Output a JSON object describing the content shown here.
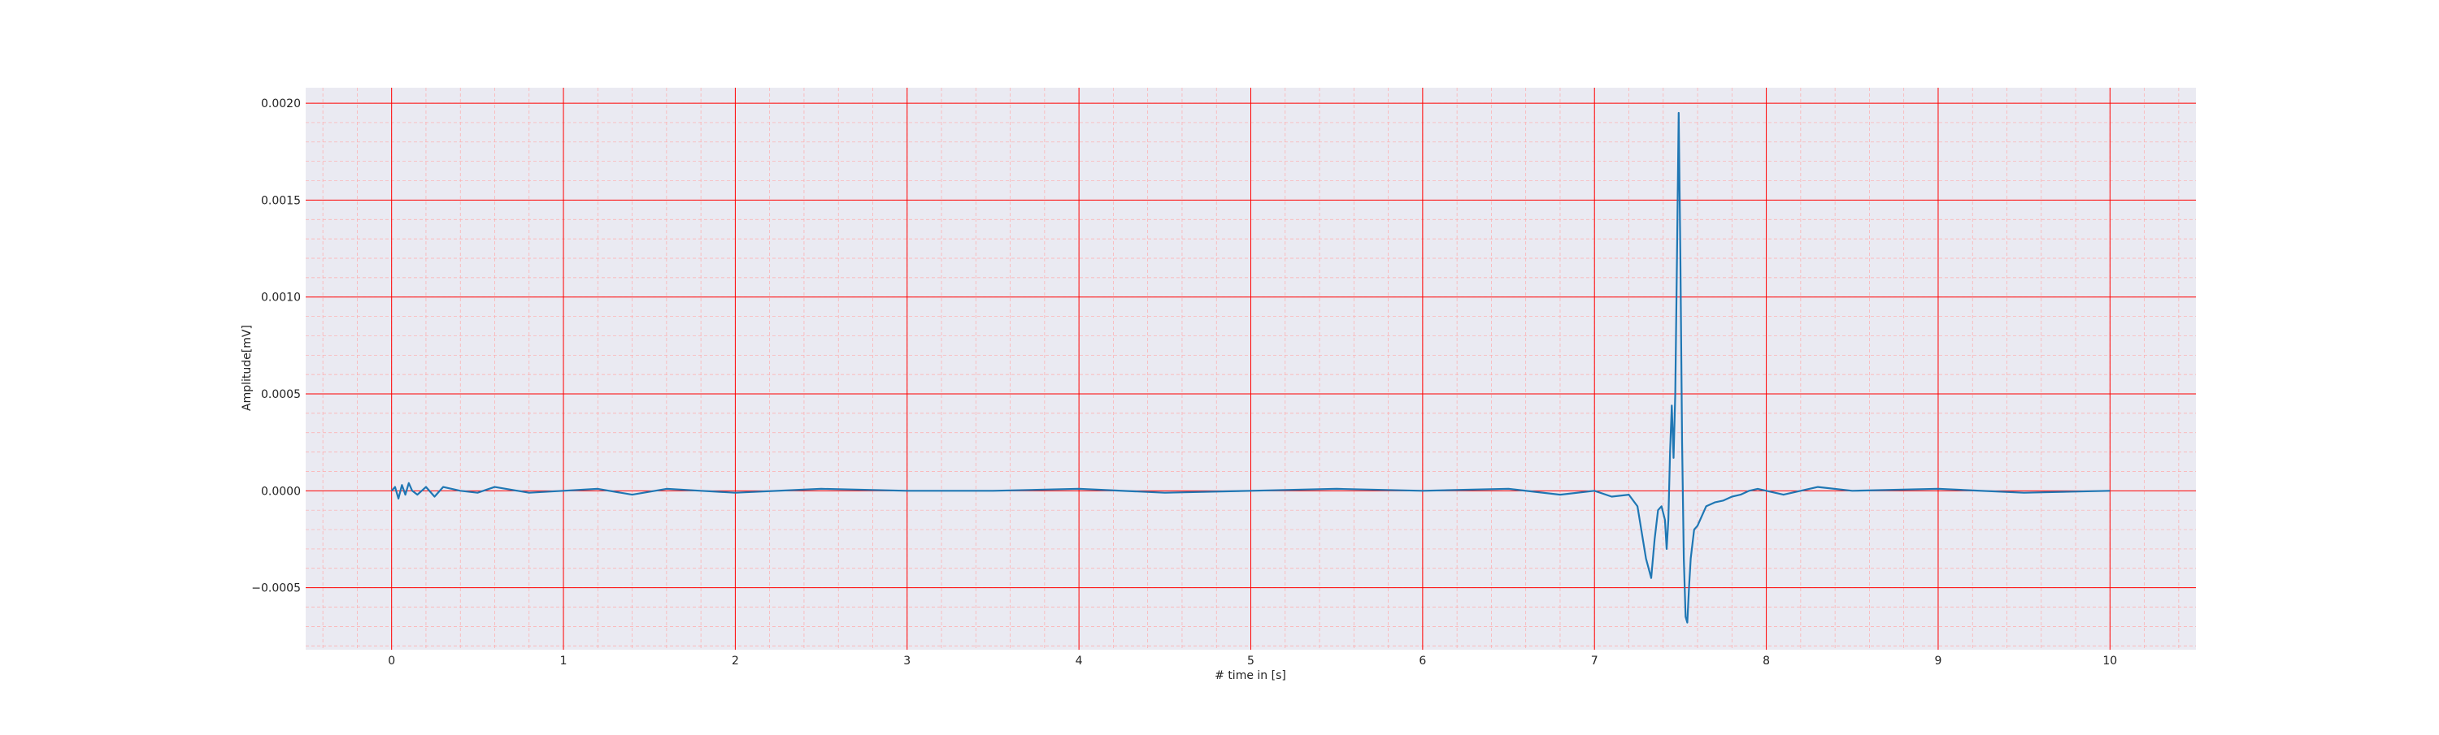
{
  "chart_data": {
    "type": "line",
    "title": "",
    "xlabel": "# time in [s]",
    "ylabel": "Amplitude[mV]",
    "xlim": [
      -0.5,
      10.5
    ],
    "ylim": [
      -0.00082,
      0.00208
    ],
    "x_ticks": [
      0,
      1,
      2,
      3,
      4,
      5,
      6,
      7,
      8,
      9,
      10
    ],
    "x_tick_labels": [
      "0",
      "1",
      "2",
      "3",
      "4",
      "5",
      "6",
      "7",
      "8",
      "9",
      "10"
    ],
    "y_ticks": [
      -0.0005,
      0.0,
      0.0005,
      0.001,
      0.0015,
      0.002
    ],
    "y_tick_labels": [
      "−0.0005",
      "0.0000",
      "0.0005",
      "0.0010",
      "0.0015",
      "0.0020"
    ],
    "grid": true,
    "minor_grid": true,
    "colors": {
      "plot_background": "#eaeaf2",
      "major_grid": "#ff0000",
      "minor_grid": "#ffaaaa",
      "line": "#1f77b4"
    },
    "series": [
      {
        "x": [
          0.0,
          0.02,
          0.04,
          0.06,
          0.08,
          0.1,
          0.12,
          0.15,
          0.2,
          0.25,
          0.3,
          0.4,
          0.5,
          0.6,
          0.8,
          1.0,
          1.2,
          1.4,
          1.6,
          1.8,
          2.0,
          2.5,
          3.0,
          3.5,
          4.0,
          4.5,
          5.0,
          5.5,
          6.0,
          6.5,
          6.8,
          7.0,
          7.1,
          7.2,
          7.25,
          7.3,
          7.33,
          7.35,
          7.37,
          7.39,
          7.41,
          7.42,
          7.43,
          7.44,
          7.45,
          7.46,
          7.47,
          7.48,
          7.49,
          7.5,
          7.51,
          7.52,
          7.53,
          7.54,
          7.55,
          7.56,
          7.58,
          7.6,
          7.65,
          7.7,
          7.75,
          7.8,
          7.85,
          7.9,
          7.95,
          8.0,
          8.1,
          8.3,
          8.5,
          9.0,
          9.5,
          10.0
        ],
        "y": [
          0.0,
          2e-05,
          -4e-05,
          3e-05,
          -2e-05,
          4e-05,
          0.0,
          -2e-05,
          2e-05,
          -3e-05,
          2e-05,
          0.0,
          -1e-05,
          2e-05,
          -1e-05,
          0.0,
          1e-05,
          -2e-05,
          1e-05,
          0.0,
          -1e-05,
          1e-05,
          0.0,
          0.0,
          1e-05,
          -1e-05,
          0.0,
          1e-05,
          0.0,
          1e-05,
          -2e-05,
          0.0,
          -3e-05,
          -2e-05,
          -8e-05,
          -0.00035,
          -0.00045,
          -0.00025,
          -0.0001,
          -8e-05,
          -0.00015,
          -0.0003,
          -0.00015,
          0.0002,
          0.00044,
          0.00017,
          0.0005,
          0.0012,
          0.00195,
          0.0012,
          0.00025,
          -0.00035,
          -0.00065,
          -0.00068,
          -0.0005,
          -0.00035,
          -0.0002,
          -0.00018,
          -8e-05,
          -6e-05,
          -5e-05,
          -3e-05,
          -2e-05,
          0.0,
          1e-05,
          0.0,
          -2e-05,
          2e-05,
          0.0,
          1e-05,
          -1e-05,
          0.0
        ]
      }
    ]
  }
}
